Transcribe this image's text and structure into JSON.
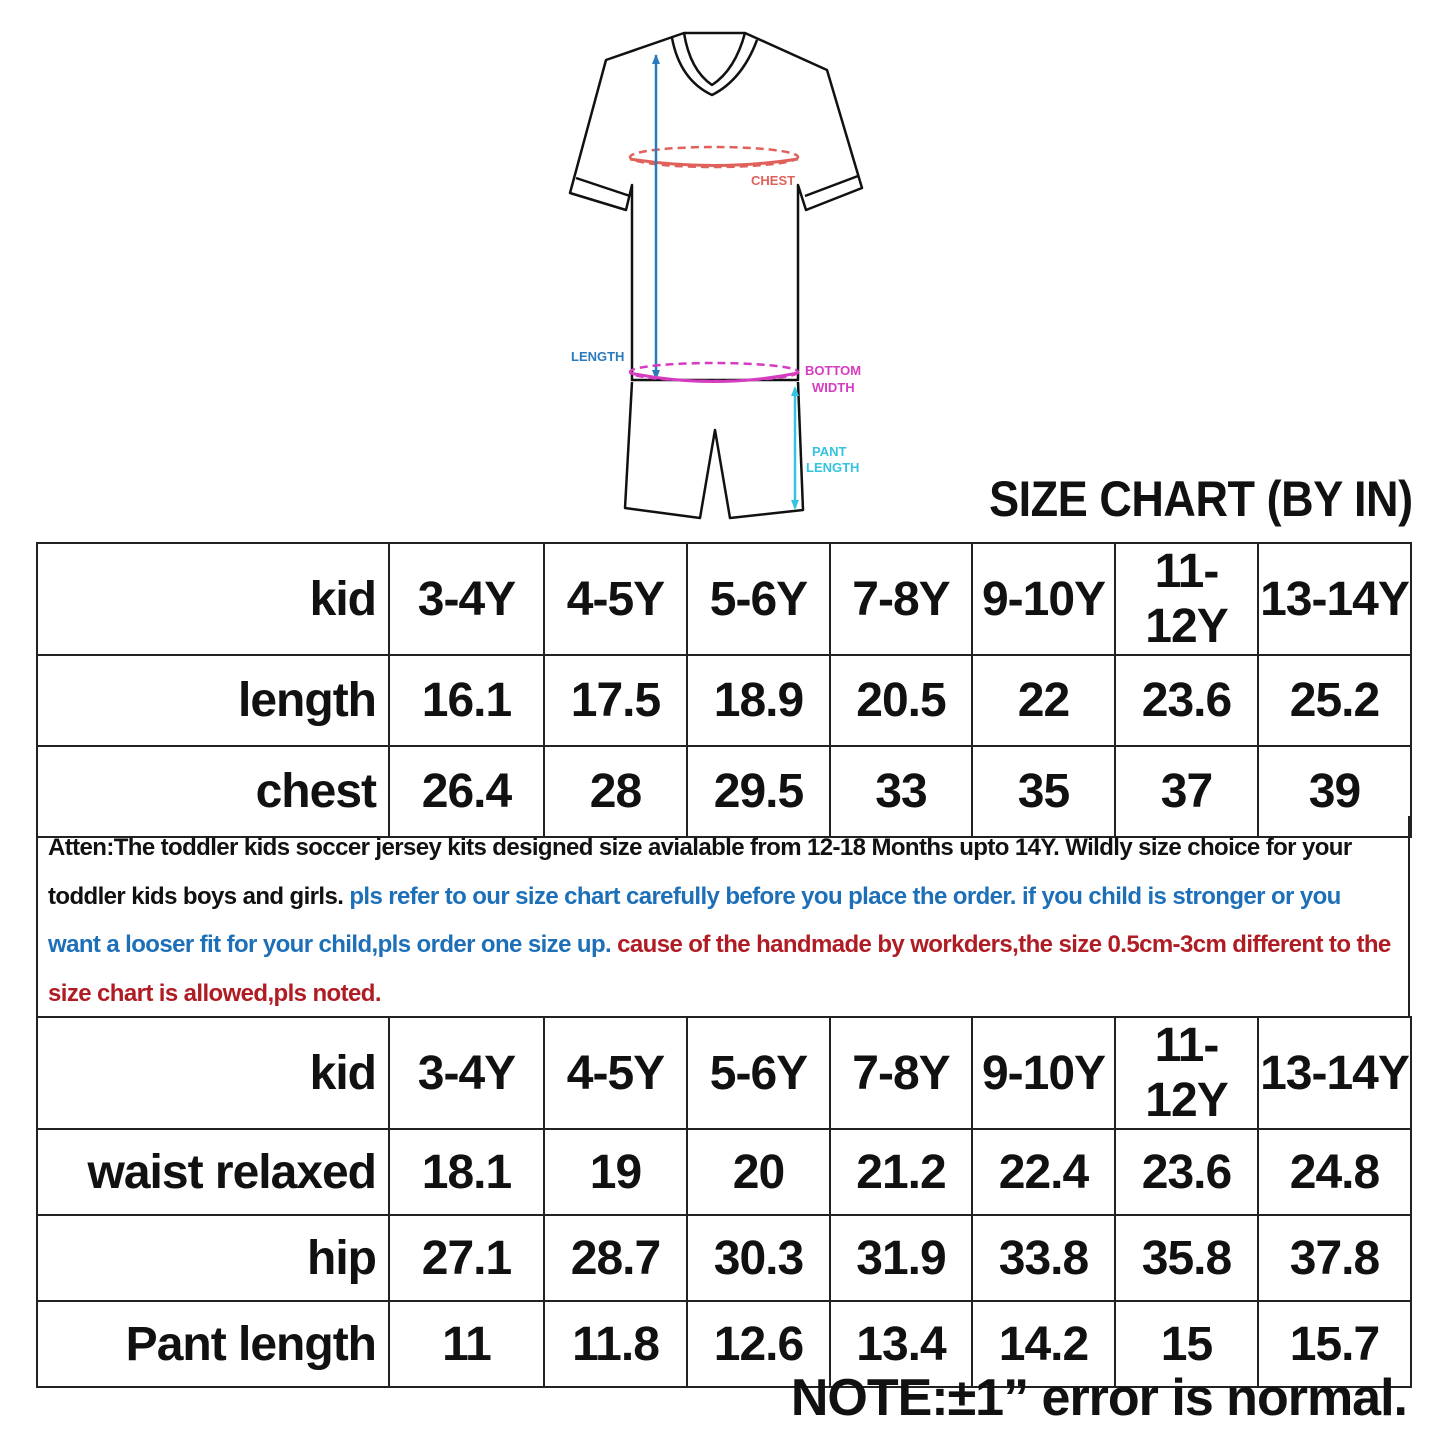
{
  "diagram": {
    "labels": {
      "chest": "CHEST",
      "length": "LENGTH",
      "bottom_width_1": "BOTTOM",
      "bottom_width_2": "WIDTH",
      "pant_length_1": "PANT",
      "pant_length_2": "LENGTH"
    },
    "colors": {
      "chest": "#e0605a",
      "length": "#2a7bbd",
      "bottom_width": "#d63cc0",
      "pant_length": "#35c3e0"
    }
  },
  "title": "SIZE CHART (BY IN)",
  "top_table": {
    "header": [
      "kid",
      "3-4Y",
      "4-5Y",
      "5-6Y",
      "7-8Y",
      "9-10Y",
      "11-12Y",
      "13-14Y"
    ],
    "rows": [
      [
        "length",
        "16.1",
        "17.5",
        "18.9",
        "20.5",
        "22",
        "23.6",
        "25.2"
      ],
      [
        "chest",
        "26.4",
        "28",
        "29.5",
        "33",
        "35",
        "37",
        "39"
      ]
    ]
  },
  "note": {
    "black": "Atten:The toddler kids soccer jersey kits designed size avialable from 12-18 Months upto 14Y. Wildly size choice for your toddler kids boys and girls. ",
    "blue": "pls refer to our size chart carefully before you place the order. if you child is stronger or you want a looser fit for your child,pls order one size up. ",
    "red": "cause of the handmade by workders,the size 0.5cm-3cm different to the size chart is allowed,pls noted."
  },
  "bottom_table": {
    "header": [
      "kid",
      "3-4Y",
      "4-5Y",
      "5-6Y",
      "7-8Y",
      "9-10Y",
      "11-12Y",
      "13-14Y"
    ],
    "rows": [
      [
        "waist relaxed",
        "18.1",
        "19",
        "20",
        "21.2",
        "22.4",
        "23.6",
        "24.8"
      ],
      [
        "hip",
        "27.1",
        "28.7",
        "30.3",
        "31.9",
        "33.8",
        "35.8",
        "37.8"
      ],
      [
        "Pant length",
        "11",
        "11.8",
        "12.6",
        "13.4",
        "14.2",
        "15",
        "15.7"
      ]
    ]
  },
  "footnote": "NOTE:±1” error is normal."
}
